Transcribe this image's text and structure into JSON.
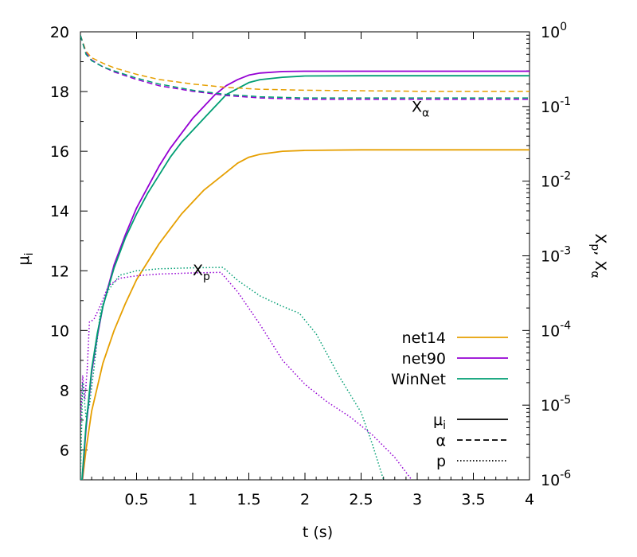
{
  "chart_data": {
    "type": "line",
    "xlabel": "t (s)",
    "ylabel_left": "μi",
    "ylabel_right": "Xp, Xα",
    "xlim": [
      0,
      4
    ],
    "ylim_left": [
      5,
      20
    ],
    "ylim_right": [
      1e-06,
      1
    ],
    "right_axis_scale": "log",
    "grid": false,
    "legend_position": "bottom-right",
    "x_ticks": [
      "0.5",
      "1",
      "1.5",
      "2",
      "2.5",
      "3",
      "3.5",
      "4"
    ],
    "x_tick_values": [
      0.5,
      1,
      1.5,
      2,
      2.5,
      3,
      3.5,
      4
    ],
    "y_left_ticks": [
      "6",
      "8",
      "10",
      "12",
      "14",
      "16",
      "18",
      "20"
    ],
    "y_left_tick_values": [
      6,
      8,
      10,
      12,
      14,
      16,
      18,
      20
    ],
    "y_right_ticks": [
      {
        "base": "10",
        "exp": "-6",
        "value": 1e-06
      },
      {
        "base": "10",
        "exp": "-5",
        "value": 1e-05
      },
      {
        "base": "10",
        "exp": "-4",
        "value": 0.0001
      },
      {
        "base": "10",
        "exp": "-3",
        "value": 0.001
      },
      {
        "base": "10",
        "exp": "-2",
        "value": 0.01
      },
      {
        "base": "10",
        "exp": "-1",
        "value": 0.1
      },
      {
        "base": "10",
        "exp": "0",
        "value": 1
      }
    ],
    "annotations": [
      {
        "text": "X",
        "sub": "α",
        "x": 2.95,
        "y_right": 0.085
      },
      {
        "text": "X",
        "sub": "p",
        "x": 1.0,
        "y_right": 0.00055
      }
    ],
    "legend": {
      "series": [
        {
          "name": "net14",
          "color": "#e69f00"
        },
        {
          "name": "net90",
          "color": "#9400d3"
        },
        {
          "name": "WinNet",
          "color": "#009e73"
        }
      ],
      "styles": [
        {
          "name": "μ",
          "sub": "i",
          "dash": "solid"
        },
        {
          "name": "α",
          "sub": "",
          "dash": "dashed"
        },
        {
          "name": "p",
          "sub": "",
          "dash": "dotted"
        }
      ]
    },
    "series": [
      {
        "name": "net14",
        "quantity": "mu_i",
        "axis": "left",
        "style": "solid",
        "color": "#e69f00",
        "points": [
          [
            0.0,
            4.4
          ],
          [
            0.05,
            6.0
          ],
          [
            0.1,
            7.3
          ],
          [
            0.15,
            8.1
          ],
          [
            0.2,
            8.9
          ],
          [
            0.3,
            10.0
          ],
          [
            0.4,
            10.9
          ],
          [
            0.5,
            11.7
          ],
          [
            0.6,
            12.3
          ],
          [
            0.7,
            12.9
          ],
          [
            0.8,
            13.4
          ],
          [
            0.9,
            13.9
          ],
          [
            1.0,
            14.3
          ],
          [
            1.1,
            14.7
          ],
          [
            1.2,
            15.0
          ],
          [
            1.3,
            15.3
          ],
          [
            1.4,
            15.6
          ],
          [
            1.5,
            15.8
          ],
          [
            1.6,
            15.9
          ],
          [
            1.8,
            16.0
          ],
          [
            2.0,
            16.03
          ],
          [
            2.5,
            16.05
          ],
          [
            3.0,
            16.05
          ],
          [
            4.0,
            16.05
          ]
        ]
      },
      {
        "name": "net90",
        "quantity": "mu_i",
        "axis": "left",
        "style": "solid",
        "color": "#9400d3",
        "points": [
          [
            0.0,
            4.2
          ],
          [
            0.05,
            6.7
          ],
          [
            0.1,
            8.6
          ],
          [
            0.15,
            9.8
          ],
          [
            0.2,
            10.8
          ],
          [
            0.3,
            12.2
          ],
          [
            0.4,
            13.2
          ],
          [
            0.5,
            14.1
          ],
          [
            0.6,
            14.8
          ],
          [
            0.7,
            15.5
          ],
          [
            0.8,
            16.1
          ],
          [
            0.9,
            16.6
          ],
          [
            1.0,
            17.1
          ],
          [
            1.1,
            17.5
          ],
          [
            1.2,
            17.9
          ],
          [
            1.3,
            18.2
          ],
          [
            1.4,
            18.4
          ],
          [
            1.5,
            18.55
          ],
          [
            1.6,
            18.62
          ],
          [
            1.8,
            18.67
          ],
          [
            2.0,
            18.68
          ],
          [
            2.5,
            18.68
          ],
          [
            3.0,
            18.68
          ],
          [
            4.0,
            18.68
          ]
        ]
      },
      {
        "name": "WinNet",
        "quantity": "mu_i",
        "axis": "left",
        "style": "solid",
        "color": "#009e73",
        "points": [
          [
            0.0,
            4.3
          ],
          [
            0.05,
            6.8
          ],
          [
            0.1,
            8.7
          ],
          [
            0.15,
            9.9
          ],
          [
            0.2,
            10.8
          ],
          [
            0.3,
            12.1
          ],
          [
            0.4,
            13.1
          ],
          [
            0.5,
            13.9
          ],
          [
            0.6,
            14.6
          ],
          [
            0.7,
            15.2
          ],
          [
            0.8,
            15.8
          ],
          [
            0.9,
            16.3
          ],
          [
            1.0,
            16.7
          ],
          [
            1.1,
            17.1
          ],
          [
            1.2,
            17.5
          ],
          [
            1.3,
            17.9
          ],
          [
            1.4,
            18.1
          ],
          [
            1.5,
            18.3
          ],
          [
            1.6,
            18.4
          ],
          [
            1.8,
            18.48
          ],
          [
            2.0,
            18.52
          ],
          [
            2.5,
            18.53
          ],
          [
            3.0,
            18.53
          ],
          [
            4.0,
            18.53
          ]
        ]
      },
      {
        "name": "net14",
        "quantity": "X_alpha",
        "axis": "right",
        "style": "dashed",
        "color": "#e69f00",
        "points": [
          [
            0.0,
            0.9
          ],
          [
            0.05,
            0.55
          ],
          [
            0.1,
            0.45
          ],
          [
            0.2,
            0.38
          ],
          [
            0.3,
            0.33
          ],
          [
            0.5,
            0.27
          ],
          [
            0.7,
            0.23
          ],
          [
            1.0,
            0.2
          ],
          [
            1.3,
            0.18
          ],
          [
            1.6,
            0.17
          ],
          [
            2.0,
            0.165
          ],
          [
            3.0,
            0.16
          ],
          [
            4.0,
            0.16
          ]
        ]
      },
      {
        "name": "net90",
        "quantity": "X_alpha",
        "axis": "right",
        "style": "dashed",
        "color": "#9400d3",
        "points": [
          [
            0.0,
            0.9
          ],
          [
            0.05,
            0.52
          ],
          [
            0.1,
            0.42
          ],
          [
            0.2,
            0.34
          ],
          [
            0.3,
            0.29
          ],
          [
            0.5,
            0.23
          ],
          [
            0.7,
            0.19
          ],
          [
            1.0,
            0.16
          ],
          [
            1.3,
            0.14
          ],
          [
            1.6,
            0.13
          ],
          [
            2.0,
            0.125
          ],
          [
            3.0,
            0.125
          ],
          [
            4.0,
            0.125
          ]
        ]
      },
      {
        "name": "WinNet",
        "quantity": "X_alpha",
        "axis": "right",
        "style": "dashed",
        "color": "#009e73",
        "points": [
          [
            0.0,
            0.9
          ],
          [
            0.05,
            0.5
          ],
          [
            0.1,
            0.41
          ],
          [
            0.2,
            0.34
          ],
          [
            0.3,
            0.3
          ],
          [
            0.5,
            0.24
          ],
          [
            0.7,
            0.2
          ],
          [
            1.0,
            0.165
          ],
          [
            1.3,
            0.145
          ],
          [
            1.6,
            0.135
          ],
          [
            2.0,
            0.13
          ],
          [
            3.0,
            0.13
          ],
          [
            4.0,
            0.13
          ]
        ]
      },
      {
        "name": "net90",
        "quantity": "X_p",
        "axis": "right",
        "style": "dotted",
        "color": "#9400d3",
        "points": [
          [
            0.0,
            5e-06
          ],
          [
            0.02,
            2.5e-05
          ],
          [
            0.04,
            1.2e-05
          ],
          [
            0.06,
            3e-05
          ],
          [
            0.08,
            0.00013
          ],
          [
            0.12,
            0.00014
          ],
          [
            0.18,
            0.00022
          ],
          [
            0.25,
            0.0004
          ],
          [
            0.35,
            0.0005
          ],
          [
            0.5,
            0.00054
          ],
          [
            0.7,
            0.00057
          ],
          [
            1.0,
            0.00059
          ],
          [
            1.25,
            0.0006
          ],
          [
            1.4,
            0.00033
          ],
          [
            1.6,
            0.00012
          ],
          [
            1.8,
            4e-05
          ],
          [
            2.0,
            1.9e-05
          ],
          [
            2.2,
            1.1e-05
          ],
          [
            2.4,
            7e-06
          ],
          [
            2.6,
            4e-06
          ],
          [
            2.8,
            2e-06
          ],
          [
            2.95,
            1e-06
          ]
        ]
      },
      {
        "name": "WinNet",
        "quantity": "X_p",
        "axis": "right",
        "style": "dotted",
        "color": "#009e73",
        "points": [
          [
            0.0,
            1e-06
          ],
          [
            0.02,
            2e-05
          ],
          [
            0.05,
            7e-06
          ],
          [
            0.08,
            1e-05
          ],
          [
            0.12,
            3e-05
          ],
          [
            0.18,
            0.00019
          ],
          [
            0.25,
            0.00035
          ],
          [
            0.35,
            0.00055
          ],
          [
            0.5,
            0.00063
          ],
          [
            0.7,
            0.00067
          ],
          [
            1.0,
            0.00069
          ],
          [
            1.27,
            0.0007
          ],
          [
            1.4,
            0.00047
          ],
          [
            1.6,
            0.00029
          ],
          [
            1.8,
            0.00021
          ],
          [
            1.95,
            0.00017
          ],
          [
            2.1,
            9e-05
          ],
          [
            2.3,
            2.5e-05
          ],
          [
            2.5,
            8e-06
          ],
          [
            2.6,
            3e-06
          ],
          [
            2.7,
            1e-06
          ]
        ]
      }
    ]
  }
}
